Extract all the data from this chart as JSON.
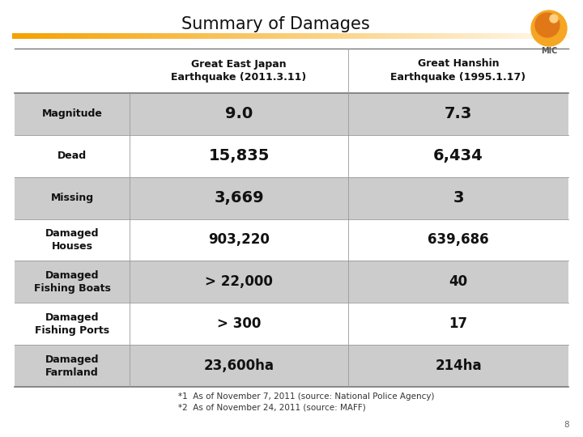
{
  "title": "Summary of Damages",
  "background_color": "#ffffff",
  "col_headers": [
    "Great East Japan\nEarthquake (2011.3.11)",
    "Great Hanshin\nEarthquake (1995.1.17)"
  ],
  "row_labels": [
    "Magnitude",
    "Dead",
    "Missing",
    "Damaged\nHouses",
    "Damaged\nFishing Boats",
    "Damaged\nFishing Ports",
    "Damaged\nFarmland"
  ],
  "col1_values": [
    "9.0",
    "15,835",
    "3,669",
    "903,220",
    "> 22,000",
    "> 300",
    "23,600ha"
  ],
  "col2_values": [
    "7.3",
    "6,434",
    "3",
    "639,686",
    "40",
    "17",
    "214ha"
  ],
  "shaded_rows": [
    0,
    2,
    4,
    6
  ],
  "shaded_color": "#cccccc",
  "unshaded_color": "#ffffff",
  "note1": "*1  As of November 7, 2011 (source: National Police Agency)",
  "note2": "*2  As of November 24, 2011 (source: MAFF)",
  "page_number": "8",
  "title_fontsize": 15,
  "header_fontsize": 9,
  "cell_fontsize_large": 14,
  "cell_fontsize_medium": 12,
  "label_fontsize": 9,
  "note_fontsize": 7.5,
  "gradient_start": "#f5a000",
  "gradient_end": "#fffaf0"
}
